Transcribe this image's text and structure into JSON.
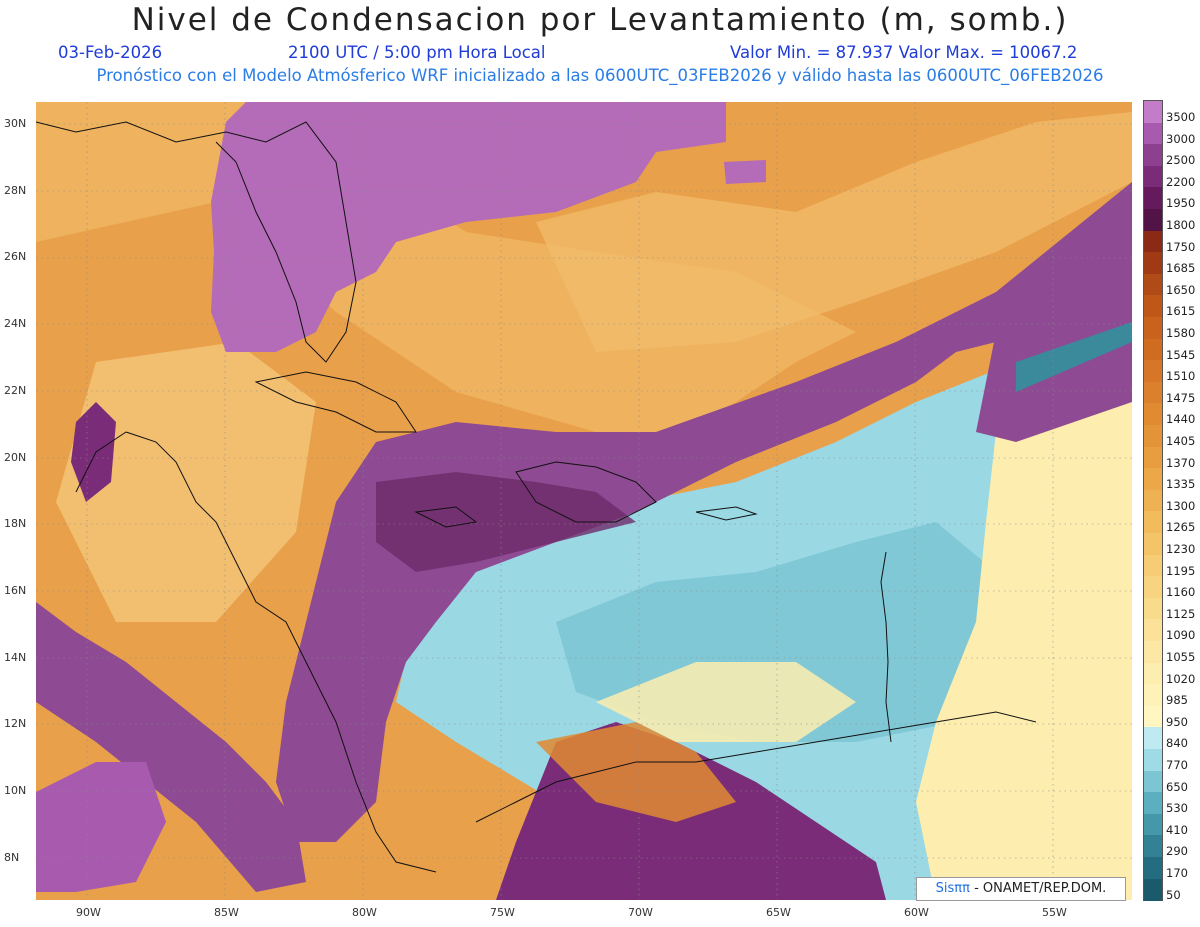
{
  "title": "Nivel de Condensacion por Levantamiento (m, somb.)",
  "date": "03-Feb-2026",
  "time_label": "2100 UTC / 5:00 pm Hora Local",
  "min_max_label": "Valor Min. = 87.937   Valor Max. = 10067.2",
  "subtitle": "Pronóstico con el Modelo Atmósferico WRF inicializado a las 0600UTC_03FEB2026 y válido hasta las  0600UTC_06FEB2026",
  "logo": {
    "brand": "Sisππ",
    "text": " - ONAMET/REP.DOM."
  },
  "lat_labels": [
    "30N",
    "28N",
    "26N",
    "24N",
    "22N",
    "20N",
    "18N",
    "16N",
    "14N",
    "12N",
    "10N",
    "8N"
  ],
  "lon_labels": [
    "90W",
    "85W",
    "80W",
    "75W",
    "70W",
    "65W",
    "60W",
    "55W"
  ],
  "colorbar": {
    "levels": [
      "3500",
      "3000",
      "2500",
      "2200",
      "1950",
      "1800",
      "1750",
      "1685",
      "1650",
      "1615",
      "1580",
      "1545",
      "1510",
      "1475",
      "1440",
      "1405",
      "1370",
      "1335",
      "1300",
      "1265",
      "1230",
      "1195",
      "1160",
      "1125",
      "1090",
      "1055",
      "1020",
      "985",
      "950",
      "840",
      "770",
      "650",
      "530",
      "410",
      "290",
      "170",
      "50"
    ],
    "colors": [
      "#c27cc8",
      "#a85aae",
      "#8e4090",
      "#7a2c78",
      "#661a5e",
      "#521446",
      "#8a2a14",
      "#a03a14",
      "#b04a16",
      "#be5718",
      "#c8621c",
      "#d06c20",
      "#d67626",
      "#db802c",
      "#e08a32",
      "#e49438",
      "#e89e40",
      "#eca848",
      "#efb252",
      "#f2bc5c",
      "#f4c468",
      "#f6cc74",
      "#f8d480",
      "#f9db8c",
      "#fbe298",
      "#fce8a4",
      "#fdedae",
      "#fef2b8",
      "#fff6c2",
      "#bfeaf2",
      "#9edbe6",
      "#7cc6d4",
      "#5cafbf",
      "#4498aa",
      "#328194",
      "#246c80",
      "#1a5a6c"
    ]
  }
}
